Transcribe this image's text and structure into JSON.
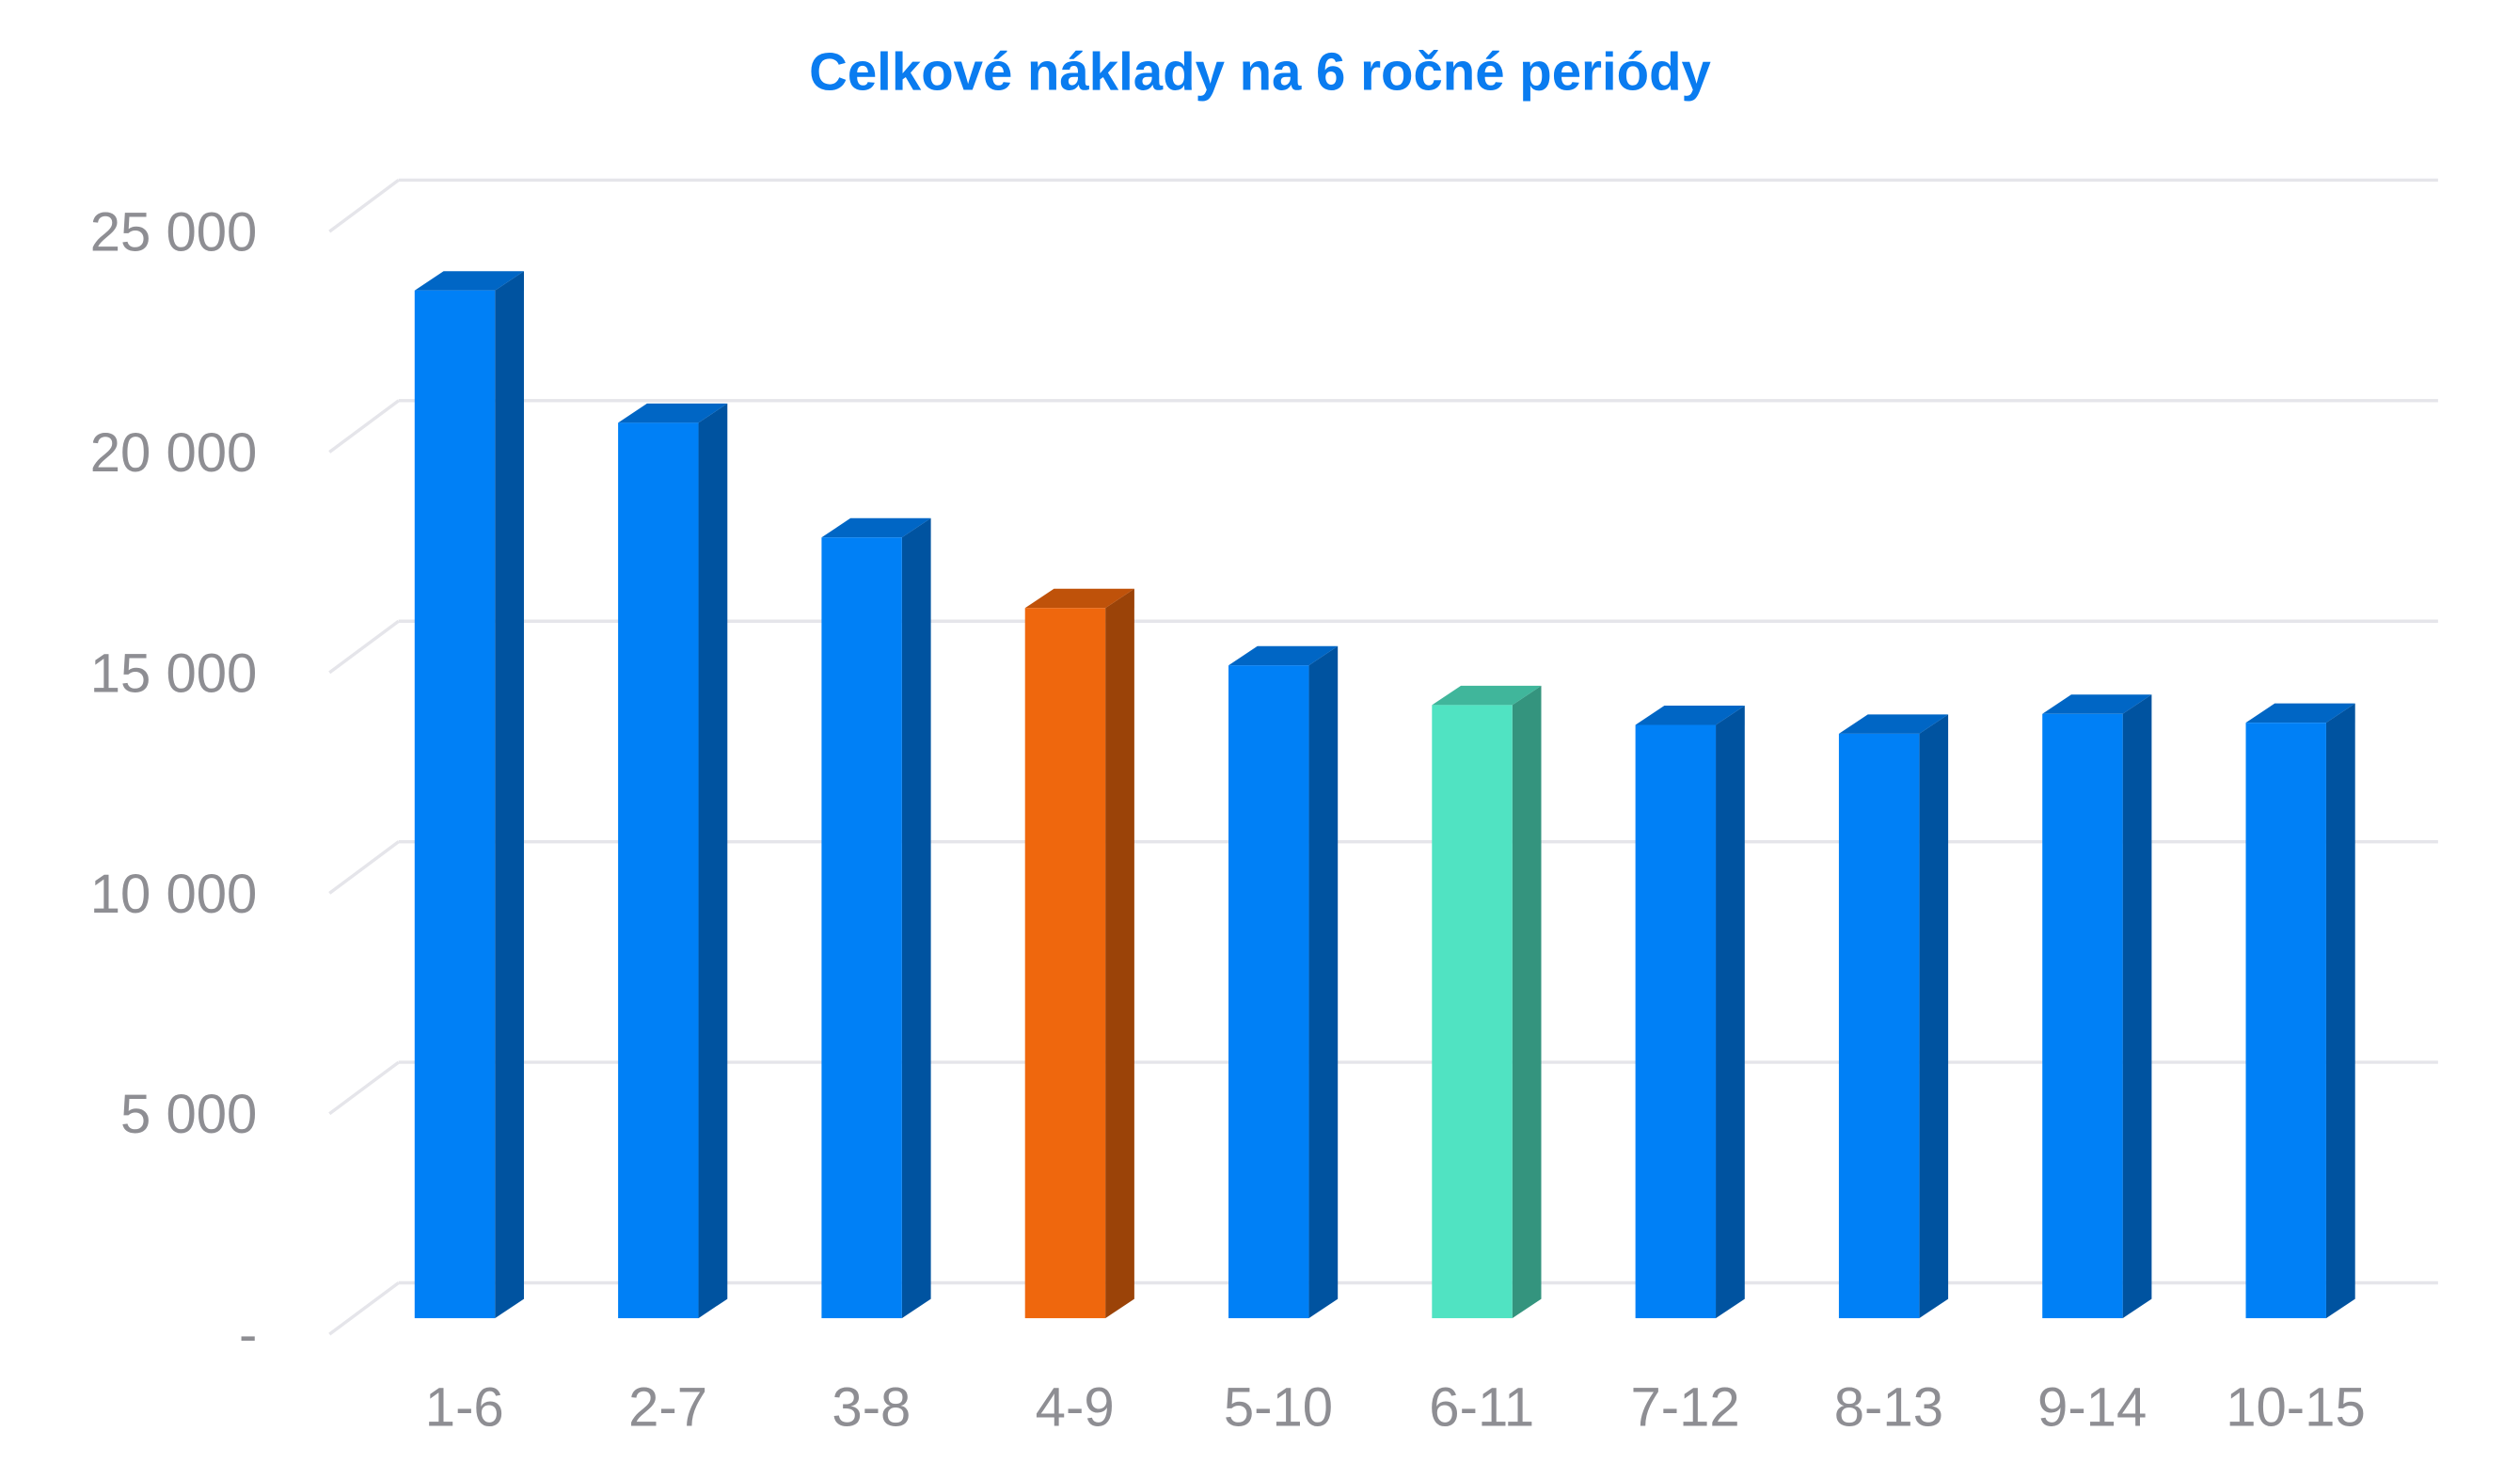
{
  "chart_data": {
    "type": "bar3d",
    "title": "Celkové náklady na 6 ročné periódy",
    "categories": [
      "1-6",
      "2-7",
      "3-8",
      "4-9",
      "5-10",
      "6-11",
      "7-12",
      "8-13",
      "9-14",
      "10-15"
    ],
    "values": [
      23300,
      20300,
      17700,
      16100,
      14800,
      13900,
      13450,
      13250,
      13700,
      13500
    ],
    "colors": [
      "#0080f6",
      "#0080f6",
      "#0080f6",
      "#ef670d",
      "#0080f6",
      "#50e3c2",
      "#0080f6",
      "#0080f6",
      "#0080f6",
      "#0080f6"
    ],
    "ylim": [
      0,
      25000
    ],
    "yticks": [
      {
        "value": 0,
        "label": "-"
      },
      {
        "value": 5000,
        "label": "5 000"
      },
      {
        "value": 10000,
        "label": "10 000"
      },
      {
        "value": 15000,
        "label": "15 000"
      },
      {
        "value": 20000,
        "label": "20 000"
      },
      {
        "value": 25000,
        "label": "25 000"
      }
    ],
    "grid": true
  }
}
